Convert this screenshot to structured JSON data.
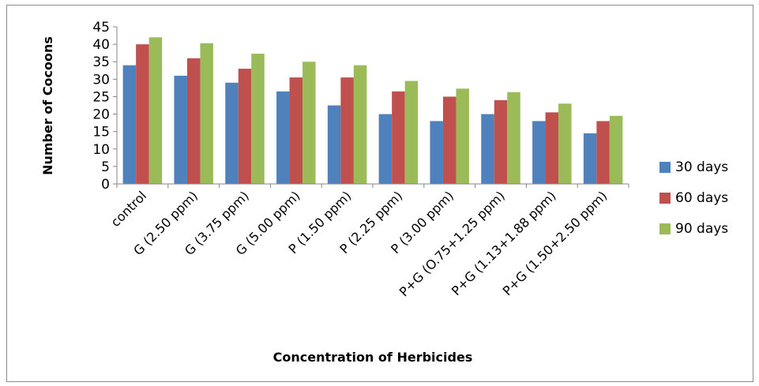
{
  "chart_data": {
    "type": "bar",
    "title": "",
    "xlabel": "Concentration of Herbicides",
    "ylabel": "Number of Cocoons",
    "ylim": [
      0,
      45
    ],
    "yticks": [
      0,
      5,
      10,
      15,
      20,
      25,
      30,
      35,
      40,
      45
    ],
    "grid": false,
    "legend_position": "right",
    "categories": [
      "control",
      "G (2.50 ppm)",
      "G (3.75 ppm)",
      "G (5.00 ppm)",
      "P (1.50 ppm)",
      "P (2.25 ppm)",
      "P (3.00 ppm)",
      "P+G (O.75+1.25 ppm)",
      "P+G (1.13+1.88 ppm)",
      "P+G (1.50+2.50 ppm)"
    ],
    "series": [
      {
        "name": "30 days",
        "color": "#4F81BD",
        "values": [
          34,
          31,
          29,
          26.5,
          22.5,
          20,
          18,
          20,
          18,
          14.5
        ]
      },
      {
        "name": "60 days",
        "color": "#C0504D",
        "values": [
          40,
          36,
          33,
          30.5,
          30.5,
          26.5,
          25,
          24,
          20.5,
          18
        ]
      },
      {
        "name": "90 days",
        "color": "#9BBB59",
        "values": [
          42,
          40.3,
          37.3,
          35,
          34,
          29.5,
          27.3,
          26.3,
          23,
          19.5
        ]
      }
    ]
  }
}
